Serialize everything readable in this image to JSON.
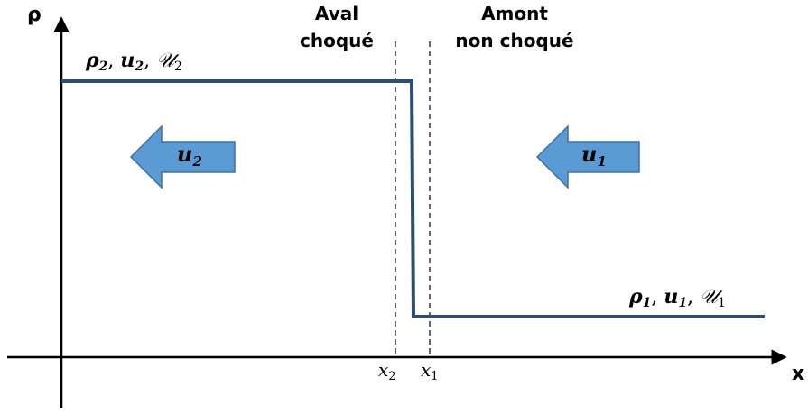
{
  "axes": {
    "y_label": "ρ",
    "x_label": "x"
  },
  "regions": {
    "downstream": {
      "line1": "Aval",
      "line2": "choqué"
    },
    "upstream": {
      "line1": "Amont",
      "line2": "non choqué"
    }
  },
  "states": {
    "left": {
      "rho": "ρ",
      "u": "u",
      "script": "𝒰",
      "sub": "2"
    },
    "right": {
      "rho": "ρ",
      "u": "u",
      "script": "𝒰",
      "sub": "1"
    }
  },
  "positions": {
    "x2": {
      "var": "x",
      "sub": "2"
    },
    "x1": {
      "var": "x",
      "sub": "1"
    }
  },
  "arrows": {
    "left": {
      "var": "u",
      "sub": "2",
      "direction": "left"
    },
    "right": {
      "var": "u",
      "sub": "1",
      "direction": "left"
    }
  },
  "colors": {
    "profile": "#2E4D73",
    "arrow_fill": "#5B9BD5",
    "arrow_stroke": "#41719C"
  }
}
